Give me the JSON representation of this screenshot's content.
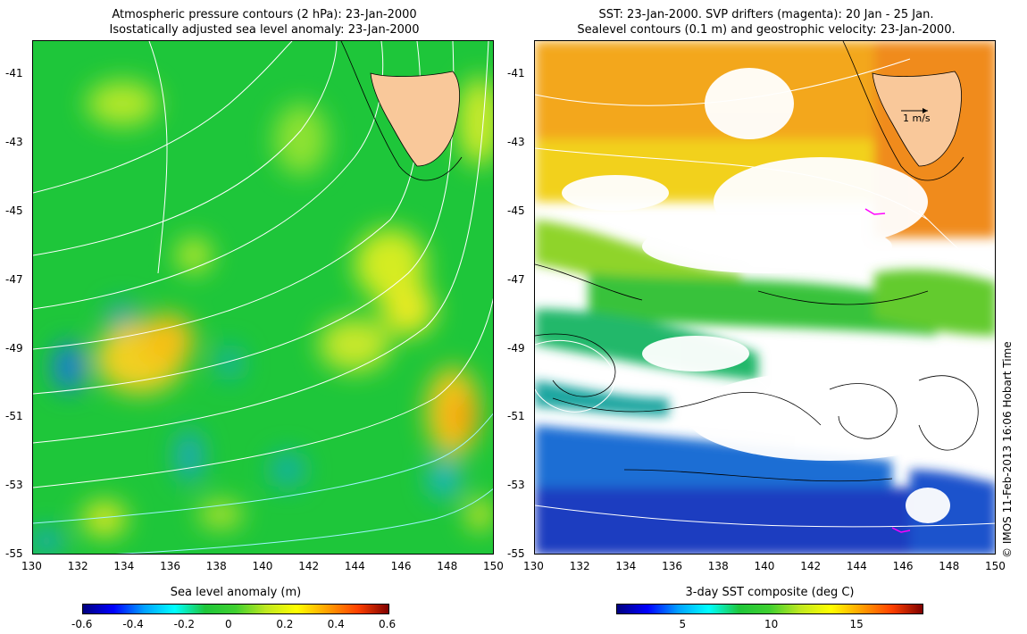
{
  "left": {
    "title_line1": "Atmospheric pressure contours (2 hPa): 23-Jan-2000",
    "title_line2": "Isostatically adjusted sea level anomaly: 23-Jan-2000",
    "colorbar_label": "Sea level anomaly (m)",
    "colorbar_ticks": [
      "-0.6",
      "-0.4",
      "-0.2",
      "0",
      "0.2",
      "0.4",
      "0.6"
    ],
    "colorbar_range": [
      -0.6,
      0.6
    ]
  },
  "right": {
    "title_line1": "SST: 23-Jan-2000. SVP drifters (magenta): 20 Jan - 25 Jan.",
    "title_line2": "Sealevel contours (0.1 m) and geostrophic velocity: 23-Jan-2000.",
    "colorbar_label": "3-day SST composite (deg C)",
    "colorbar_ticks": [
      "5",
      "10",
      "15"
    ],
    "colorbar_tick_values": [
      5,
      10,
      15
    ],
    "colorbar_range": [
      1,
      19
    ],
    "velocity_scale_label": "1 m/s"
  },
  "axes": {
    "lat_ticks": [
      "-41",
      "-43",
      "-45",
      "-47",
      "-49",
      "-51",
      "-53",
      "-55"
    ],
    "lat_values": [
      -41,
      -43,
      -45,
      -47,
      -49,
      -51,
      -53,
      -55
    ],
    "lon_ticks": [
      "130",
      "132",
      "134",
      "136",
      "138",
      "140",
      "142",
      "144",
      "146",
      "148",
      "150"
    ],
    "lon_values": [
      130,
      132,
      134,
      136,
      138,
      140,
      142,
      144,
      146,
      148,
      150
    ],
    "lat_range": [
      -55,
      -40
    ],
    "lon_range": [
      130,
      150
    ]
  },
  "credit": "© IMOS 11-Feb-2013 16:06 Hobart Time",
  "colors": {
    "land": "#f9c89a",
    "contour_white": "#ffffff",
    "drifter": "#ff00ff"
  }
}
